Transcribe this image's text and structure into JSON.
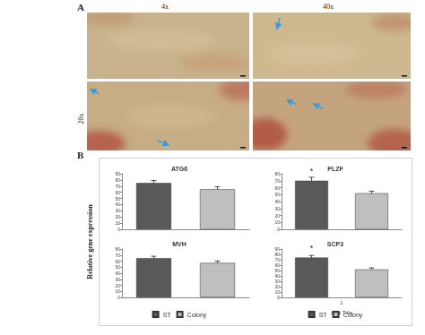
{
  "figure": {
    "panel_a": {
      "label": "A",
      "column_labels": [
        "4x",
        "40x"
      ],
      "row_label": "20x"
    },
    "panel_b": {
      "label": "B",
      "y_label": "Relative gene expression"
    }
  },
  "chart_data": [
    {
      "type": "bar",
      "title": "ATG6",
      "categories": [
        null
      ],
      "series": [
        {
          "name": "ST",
          "color": "#595959",
          "values": [
            75
          ],
          "errors": [
            4
          ]
        },
        {
          "name": "Colony",
          "color": "#bfbfbf",
          "values": [
            65
          ],
          "errors": [
            4
          ]
        }
      ],
      "ylim": [
        0,
        90
      ],
      "yticks": [
        0,
        10,
        20,
        30,
        40,
        50,
        60,
        70,
        80,
        90
      ],
      "grid": false
    },
    {
      "type": "bar",
      "title": "PLZF",
      "categories": [
        null
      ],
      "series": [
        {
          "name": "ST",
          "color": "#595959",
          "values": [
            70
          ],
          "errors": [
            5
          ],
          "annotation": "*"
        },
        {
          "name": "Colony",
          "color": "#bfbfbf",
          "values": [
            52
          ],
          "errors": [
            3
          ]
        }
      ],
      "ylim": [
        0,
        80
      ],
      "yticks": [
        0,
        10,
        20,
        30,
        40,
        50,
        60,
        70,
        80
      ],
      "grid": false
    },
    {
      "type": "bar",
      "title": "MVH",
      "categories": [
        null
      ],
      "series": [
        {
          "name": "ST",
          "color": "#595959",
          "values": [
            65
          ],
          "errors": [
            3
          ]
        },
        {
          "name": "Colony",
          "color": "#bfbfbf",
          "values": [
            57
          ],
          "errors": [
            3
          ]
        }
      ],
      "ylim": [
        0,
        80
      ],
      "yticks": [
        0,
        10,
        20,
        30,
        40,
        50,
        60,
        70,
        80
      ],
      "grid": false,
      "legend": "bottom"
    },
    {
      "type": "bar",
      "title": "SCP3",
      "categories": [
        "1"
      ],
      "x_label": "Axis Title",
      "series": [
        {
          "name": "ST",
          "color": "#595959",
          "values": [
            74
          ],
          "errors": [
            4
          ],
          "annotation": "*"
        },
        {
          "name": "Colony",
          "color": "#bfbfbf",
          "values": [
            52
          ],
          "errors": [
            3
          ]
        }
      ],
      "ylim": [
        0,
        90
      ],
      "yticks": [
        0,
        10,
        20,
        30,
        40,
        50,
        60,
        70,
        80,
        90
      ],
      "grid": false,
      "legend": "bottom"
    }
  ]
}
